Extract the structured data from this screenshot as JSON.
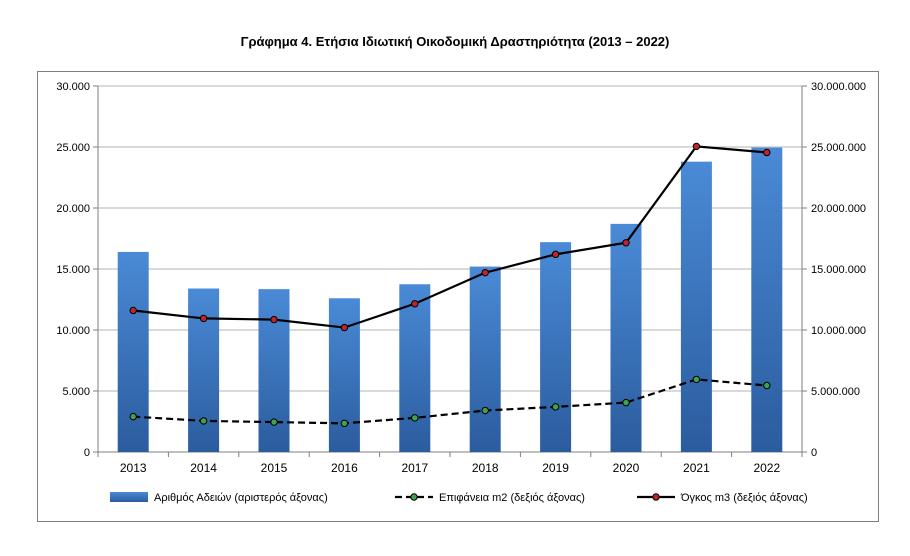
{
  "title": "Γράφημα 4. Ετήσια Ιδιωτική Οικοδομική Δραστηριότητα (2013 – 2022)",
  "chart_data": {
    "type": "bar",
    "categories": [
      "2013",
      "2014",
      "2015",
      "2016",
      "2017",
      "2018",
      "2019",
      "2020",
      "2021",
      "2022"
    ],
    "left_axis": {
      "ylim": [
        0,
        30000
      ],
      "ticks": [
        0,
        5000,
        10000,
        15000,
        20000,
        25000,
        30000
      ],
      "tick_labels": [
        "0",
        "5.000",
        "10.000",
        "15.000",
        "20.000",
        "25.000",
        "30.000"
      ]
    },
    "right_axis": {
      "ylim": [
        0,
        30000000
      ],
      "ticks": [
        0,
        5000000,
        10000000,
        15000000,
        20000000,
        25000000,
        30000000
      ],
      "tick_labels": [
        "0",
        "5.000.000",
        "10.000.000",
        "15.000.000",
        "20.000.000",
        "25.000.000",
        "30.000.000"
      ]
    },
    "grid": true,
    "legend_position": "bottom",
    "series": [
      {
        "name": "Αριθμός Αδειών (αριστερός άξονας)",
        "type": "bar",
        "axis": "left",
        "color": "#3a76c4",
        "values": [
          16400,
          13400,
          13350,
          12600,
          13750,
          15200,
          17200,
          18700,
          23800,
          24950
        ]
      },
      {
        "name": "Επιφάνεια m2 (δεξιός άξονας)",
        "type": "line",
        "style": "dashed",
        "axis": "right",
        "color": "#000000",
        "marker_color": "#3fa34d",
        "values": [
          2900000,
          2550000,
          2450000,
          2350000,
          2800000,
          3400000,
          3700000,
          4050000,
          5950000,
          5450000
        ]
      },
      {
        "name": "Όγκος m3 (δεξιός άξονας)",
        "type": "line",
        "style": "solid",
        "axis": "right",
        "color": "#000000",
        "marker_color": "#c0232b",
        "values": [
          11600000,
          10950000,
          10850000,
          10200000,
          12150000,
          14700000,
          16200000,
          17150000,
          25050000,
          24550000
        ]
      }
    ]
  }
}
